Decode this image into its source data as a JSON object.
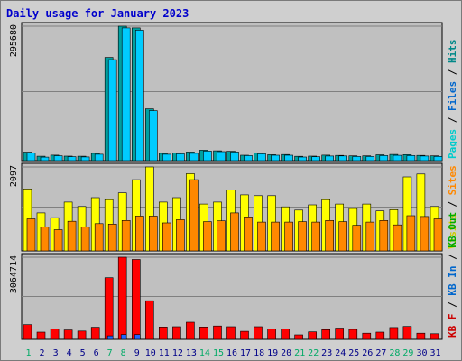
{
  "title": "Daily usage for January 2023",
  "chart_data": [
    {
      "type": "bar",
      "panel": "pages-files-hits",
      "ymax_label": "295680",
      "ylim": [
        0,
        295680
      ],
      "legend": [
        "Pages",
        "Files",
        "Hits"
      ],
      "legend_colors": [
        "#00cccc",
        "#0066cc",
        "#008888"
      ],
      "categories": [
        "1",
        "2",
        "3",
        "4",
        "5",
        "6",
        "7",
        "8",
        "9",
        "10",
        "11",
        "12",
        "13",
        "14",
        "15",
        "16",
        "17",
        "18",
        "19",
        "20",
        "21",
        "22",
        "23",
        "24",
        "25",
        "26",
        "27",
        "28",
        "29",
        "30",
        "31"
      ],
      "series": [
        {
          "name": "Hits",
          "color": "#00a0a0",
          "values": [
            18800,
            9700,
            12200,
            10000,
            9700,
            16000,
            227000,
            295680,
            292000,
            114000,
            16000,
            16900,
            19000,
            23000,
            21600,
            20600,
            12000,
            16500,
            13000,
            13500,
            9500,
            9900,
            12200,
            11500,
            10500,
            10600,
            12800,
            13600,
            13300,
            11500,
            10500
          ]
        },
        {
          "name": "Files",
          "color": "#00ccff",
          "values": [
            16800,
            7800,
            10800,
            8800,
            8200,
            14000,
            222000,
            292000,
            287000,
            110000,
            14000,
            15000,
            16000,
            21000,
            19800,
            19000,
            11200,
            15000,
            12000,
            12000,
            8000,
            8500,
            10200,
            10400,
            9200,
            9200,
            11200,
            11700,
            11200,
            10200,
            9300
          ]
        }
      ]
    },
    {
      "type": "bar",
      "panel": "visits-sites",
      "ymax_label": "2097",
      "ylim": [
        0,
        2097
      ],
      "legend": [
        "Visits",
        "Sites"
      ],
      "legend_colors": [
        "#cccc00",
        "#ff8800"
      ],
      "categories": [
        "1",
        "2",
        "3",
        "4",
        "5",
        "6",
        "7",
        "8",
        "9",
        "10",
        "11",
        "12",
        "13",
        "14",
        "15",
        "16",
        "17",
        "18",
        "19",
        "20",
        "21",
        "22",
        "23",
        "24",
        "25",
        "26",
        "27",
        "28",
        "29",
        "30",
        "31"
      ],
      "series": [
        {
          "name": "Visits",
          "color": "#ffff00",
          "values": [
            1550,
            950,
            830,
            1220,
            1110,
            1330,
            1280,
            1450,
            1780,
            2097,
            1220,
            1330,
            1930,
            1170,
            1220,
            1520,
            1400,
            1380,
            1380,
            1100,
            1020,
            1150,
            1280,
            1170,
            1060,
            1170,
            1000,
            1030,
            1850,
            1920,
            1110
          ]
        },
        {
          "name": "Sites",
          "color": "#ff8800",
          "values": [
            800,
            600,
            530,
            740,
            600,
            680,
            670,
            760,
            870,
            870,
            700,
            780,
            1780,
            730,
            750,
            950,
            850,
            720,
            720,
            720,
            730,
            720,
            760,
            730,
            640,
            720,
            760,
            650,
            880,
            860,
            800
          ]
        }
      ]
    },
    {
      "type": "bar",
      "panel": "kbytes",
      "ymax_label": "3064714",
      "ylim": [
        0,
        3064714
      ],
      "legend": [
        "KB F",
        "KB In",
        "KB Out"
      ],
      "legend_colors": [
        "#cc0000",
        "#0066cc",
        "#00aa00"
      ],
      "categories": [
        "1",
        "2",
        "3",
        "4",
        "5",
        "6",
        "7",
        "8",
        "9",
        "10",
        "11",
        "12",
        "13",
        "14",
        "15",
        "16",
        "17",
        "18",
        "19",
        "20",
        "21",
        "22",
        "23",
        "24",
        "25",
        "26",
        "27",
        "28",
        "29",
        "30",
        "31"
      ],
      "series": [
        {
          "name": "KB F",
          "color": "#ff0000",
          "values": [
            550000,
            270000,
            380000,
            350000,
            310000,
            450000,
            2300000,
            3064714,
            2980000,
            1440000,
            460000,
            470000,
            640000,
            460000,
            500000,
            470000,
            300000,
            470000,
            390000,
            390000,
            170000,
            280000,
            360000,
            420000,
            370000,
            230000,
            270000,
            440000,
            480000,
            230000,
            210000
          ]
        },
        {
          "name": "KB In",
          "color": "#2266ff",
          "values": [
            0,
            0,
            0,
            0,
            0,
            0,
            130000,
            180000,
            180000,
            0,
            0,
            0,
            0,
            0,
            0,
            0,
            0,
            0,
            0,
            0,
            0,
            0,
            0,
            0,
            0,
            0,
            0,
            0,
            0,
            0,
            0
          ]
        }
      ],
      "weekend_days": [
        1,
        7,
        8,
        14,
        15,
        21,
        22,
        28,
        29
      ]
    }
  ]
}
